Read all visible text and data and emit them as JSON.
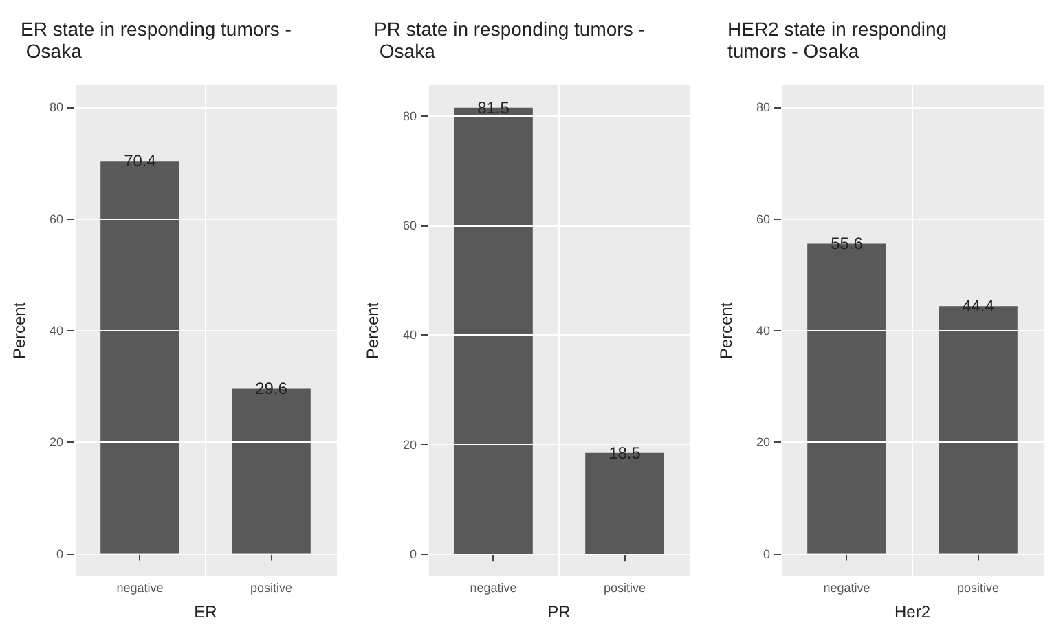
{
  "chart_data": [
    {
      "type": "bar",
      "title": "ER state in responding tumors - Osaka",
      "xlabel": "ER",
      "ylabel": "Percent",
      "categories": [
        "negative",
        "positive"
      ],
      "values": [
        70.4,
        29.6
      ],
      "color": "#595959",
      "ylim": [
        -4,
        84
      ],
      "yticks": [
        0,
        20,
        40,
        60,
        80
      ],
      "grid": true,
      "data_labels": true
    },
    {
      "type": "bar",
      "title": "PR state in responding tumors - Osaka",
      "xlabel": "PR",
      "ylabel": "Percent",
      "categories": [
        "negative",
        "positive"
      ],
      "values": [
        81.5,
        18.5
      ],
      "color": "#595959",
      "ylim": [
        -4,
        85.6
      ],
      "yticks": [
        0,
        20,
        40,
        60,
        80
      ],
      "grid": true,
      "data_labels": true
    },
    {
      "type": "bar",
      "title": "HER2 state in responding tumors - Osaka",
      "xlabel": "Her2",
      "ylabel": "Percent",
      "categories": [
        "negative",
        "positive"
      ],
      "values": [
        55.6,
        44.4
      ],
      "color": "#595959",
      "ylim": [
        -4,
        84
      ],
      "yticks": [
        0,
        20,
        40,
        60,
        80
      ],
      "grid": true,
      "data_labels": true
    }
  ]
}
